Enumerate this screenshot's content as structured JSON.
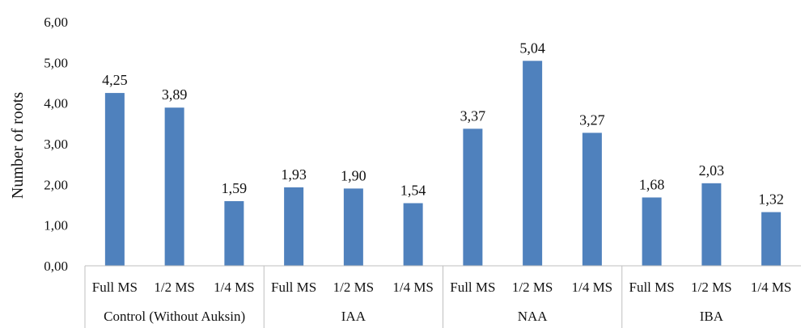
{
  "chart_data": {
    "type": "bar",
    "title": "",
    "ylabel": "Number of roots",
    "xlabel": "",
    "ylim": [
      0,
      6
    ],
    "y_ticks": [
      "0,00",
      "1,00",
      "2,00",
      "3,00",
      "4,00",
      "5,00",
      "6,00"
    ],
    "y_tick_values": [
      0,
      1,
      2,
      3,
      4,
      5,
      6
    ],
    "grid": false,
    "bar_color": "#4f81bd",
    "groups": [
      {
        "name": "Control (Without Auksin)",
        "categories": [
          "Full MS",
          "1/2 MS",
          "1/4 MS"
        ],
        "values": [
          4.25,
          3.89,
          1.59
        ],
        "labels": [
          "4,25",
          "3,89",
          "1,59"
        ]
      },
      {
        "name": "IAA",
        "categories": [
          "Full MS",
          "1/2 MS",
          "1/4 MS"
        ],
        "values": [
          1.93,
          1.9,
          1.54
        ],
        "labels": [
          "1,93",
          "1,90",
          "1,54"
        ]
      },
      {
        "name": "NAA",
        "categories": [
          "Full MS",
          "1/2 MS",
          "1/4 MS"
        ],
        "values": [
          3.37,
          5.04,
          3.27
        ],
        "labels": [
          "3,37",
          "5,04",
          "3,27"
        ]
      },
      {
        "name": "IBA",
        "categories": [
          "Full MS",
          "1/2 MS",
          "1/4 MS"
        ],
        "values": [
          1.68,
          2.03,
          1.32
        ],
        "labels": [
          "1,68",
          "2,03",
          "1,32"
        ]
      }
    ]
  }
}
